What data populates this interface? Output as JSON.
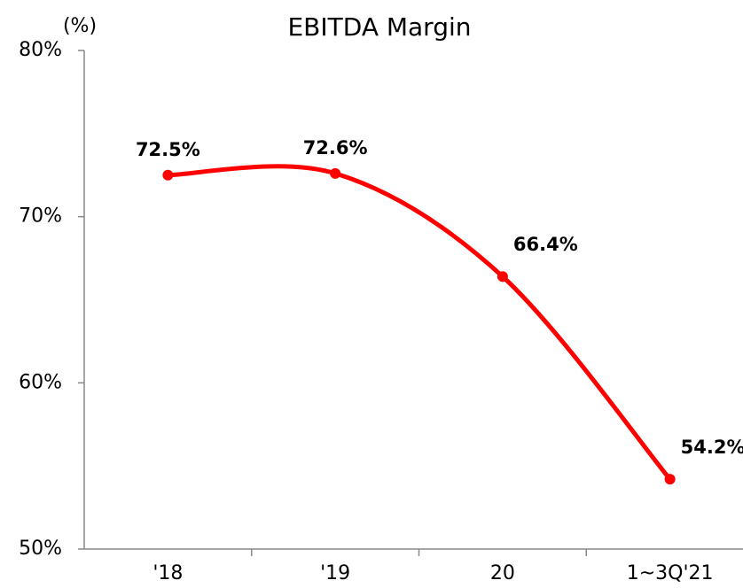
{
  "chart_data": {
    "type": "line",
    "title": "EBITDA Margin",
    "y_label": "(%)",
    "categories": [
      "'18",
      "'19",
      "20",
      "1~3Q'21"
    ],
    "values": [
      72.5,
      72.6,
      66.4,
      54.2
    ],
    "value_labels": [
      "72.5%",
      "72.6%",
      "66.4%",
      "54.2%"
    ],
    "color": "#ff0000",
    "smooth": true,
    "grid": false,
    "ylim": [
      50,
      80
    ],
    "yticks": [
      {
        "value": 50,
        "label": "50%"
      },
      {
        "value": 60,
        "label": "60%"
      },
      {
        "value": 70,
        "label": "70%"
      },
      {
        "value": 80,
        "label": "80%"
      }
    ]
  }
}
